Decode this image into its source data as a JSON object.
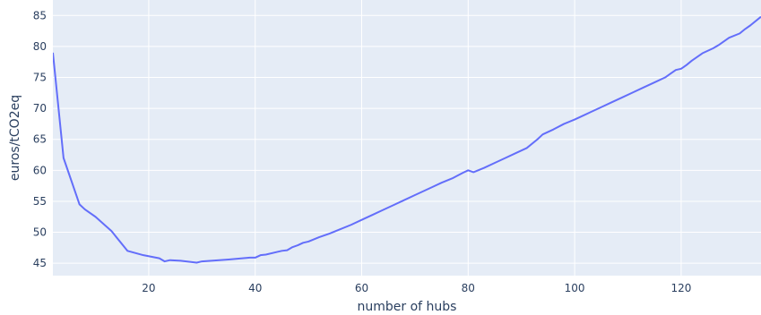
{
  "chart_data": {
    "type": "line",
    "xlabel": "number of hubs",
    "ylabel": "euros/tCO2eq",
    "xlim": [
      2,
      135
    ],
    "ylim": [
      43,
      87.5
    ],
    "x_ticks": [
      20,
      40,
      60,
      80,
      100,
      120
    ],
    "y_ticks": [
      45,
      50,
      55,
      60,
      65,
      70,
      75,
      80,
      85
    ],
    "grid": true,
    "legend": "none",
    "colors": {
      "plot_bg": "#e5ecf6",
      "grid": "#ffffff",
      "line": "#636efa",
      "text": "#2a3f5f"
    },
    "series": [
      {
        "x": [
          2,
          4,
          7,
          8,
          10,
          13,
          16,
          19,
          22,
          23,
          24,
          26,
          29,
          30,
          35,
          39,
          40,
          41,
          42,
          44,
          45,
          46,
          47,
          48,
          49,
          50,
          52,
          54,
          56,
          58,
          60,
          62,
          64,
          66,
          68,
          70,
          71,
          73,
          75,
          77,
          79,
          80,
          81,
          83,
          85,
          87,
          89,
          91,
          93,
          94,
          96,
          98,
          100,
          101,
          103,
          105,
          107,
          109,
          111,
          113,
          115,
          117,
          118,
          119,
          120,
          121,
          122,
          123,
          124,
          126,
          127,
          129,
          131,
          132,
          133,
          135
        ],
        "y": [
          79,
          62,
          54.5,
          53.7,
          52.5,
          50.2,
          47.0,
          46.3,
          45.8,
          45.3,
          45.5,
          45.4,
          45.1,
          45.3,
          45.6,
          45.9,
          45.9,
          46.3,
          46.4,
          46.8,
          47.0,
          47.1,
          47.6,
          47.9,
          48.3,
          48.5,
          49.2,
          49.8,
          50.5,
          51.2,
          52.0,
          52.8,
          53.6,
          54.4,
          55.2,
          56.0,
          56.4,
          57.2,
          58.0,
          58.7,
          59.6,
          60.0,
          59.7,
          60.4,
          61.2,
          62.0,
          62.8,
          63.6,
          65.0,
          65.8,
          66.6,
          67.5,
          68.2,
          68.6,
          69.4,
          70.2,
          71.0,
          71.8,
          72.6,
          73.4,
          74.2,
          75.0,
          75.6,
          76.2,
          76.4,
          77.0,
          77.7,
          78.3,
          78.9,
          79.7,
          80.2,
          81.4,
          82.1,
          82.8,
          83.4,
          84.8
        ]
      }
    ]
  }
}
